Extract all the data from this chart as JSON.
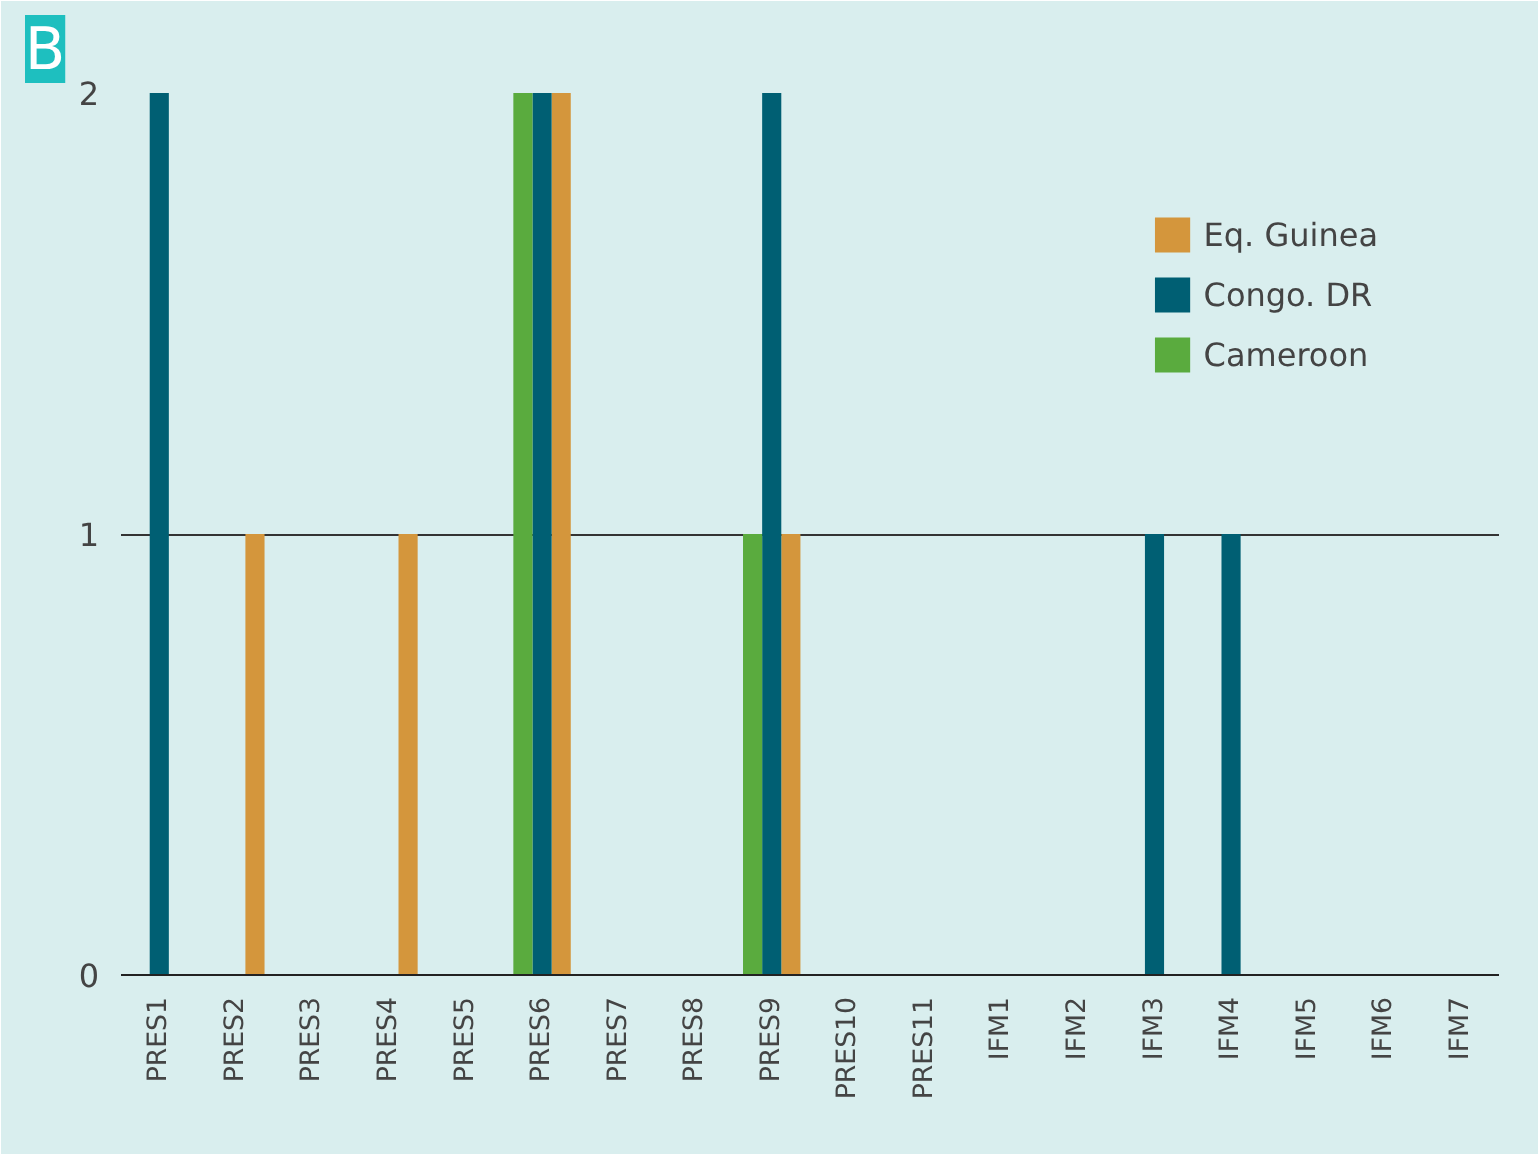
{
  "chart_data": {
    "type": "bar",
    "title": "B",
    "categories": [
      "PRES1",
      "PRES2",
      "PRES3",
      "PRES4",
      "PRES5",
      "PRES6",
      "PRES7",
      "PRES8",
      "PRES9",
      "PRES10",
      "PRES11",
      "IFM1",
      "IFM2",
      "IFM3",
      "IFM4",
      "IFM5",
      "IFM6",
      "IFM7"
    ],
    "series": [
      {
        "name": "Eq. Guinea",
        "color": "#d4963c",
        "values": [
          0,
          1,
          0,
          1,
          0,
          2,
          0,
          0,
          1,
          0,
          0,
          0,
          0,
          0,
          0,
          0,
          0,
          0
        ]
      },
      {
        "name": "Congo. DR",
        "color": "#005f73",
        "values": [
          2,
          0,
          0,
          0,
          0,
          2,
          0,
          0,
          2,
          0,
          0,
          0,
          0,
          1,
          1,
          0,
          0,
          0
        ]
      },
      {
        "name": "Cameroon",
        "color": "#5aab3e",
        "values": [
          0,
          0,
          0,
          0,
          0,
          2,
          0,
          0,
          1,
          0,
          0,
          0,
          0,
          0,
          0,
          0,
          0,
          0
        ]
      }
    ],
    "ylim": [
      0,
      2
    ],
    "yticks": [
      0,
      1,
      2
    ],
    "grid": "y",
    "legend": "top right"
  }
}
